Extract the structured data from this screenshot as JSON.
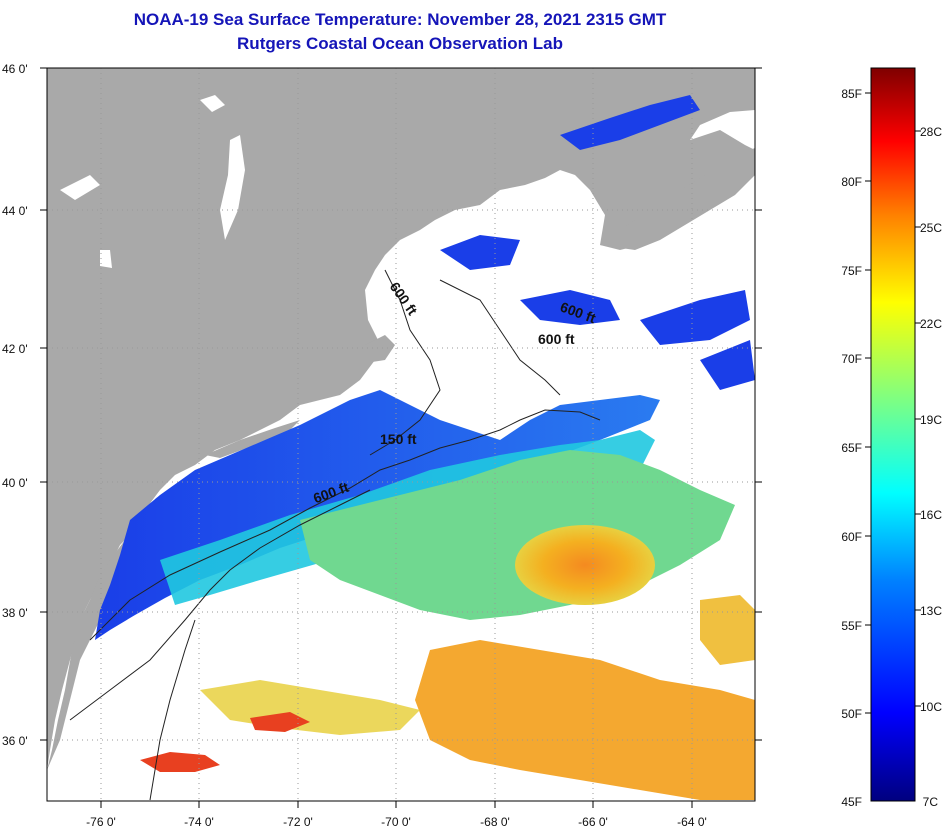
{
  "header": {
    "title": "NOAA-19 Sea Surface Temperature:  November 28, 2021 2315 GMT",
    "subtitle": "Rutgers Coastal Ocean Observation Lab"
  },
  "map": {
    "lat_labels": [
      "46 0'",
      "44 0'",
      "42 0'",
      "40 0'",
      "38 0'",
      "36 0'"
    ],
    "lon_labels": [
      "-76 0'",
      "-74 0'",
      "-72 0'",
      "-70 0'",
      "-68 0'",
      "-66 0'",
      "-64 0'"
    ],
    "contour_labels": [
      "600 ft",
      "600 ft",
      "600 ft",
      "150 ft",
      "600 ft"
    ],
    "colors": {
      "land": "#a9a9a9",
      "cloud": "#ffffff",
      "cold_water": "#1a3ee8",
      "warm_water": "#f4a020"
    }
  },
  "colorbar": {
    "f_labels": [
      "85F",
      "80F",
      "75F",
      "70F",
      "65F",
      "60F",
      "55F",
      "50F",
      "45F"
    ],
    "c_labels": [
      "28C",
      "25C",
      "22C",
      "19C",
      "16C",
      "13C",
      "10C",
      "7C"
    ],
    "colors": [
      "#00007f",
      "#0000ff",
      "#0080ff",
      "#00ffff",
      "#80ff80",
      "#ffff00",
      "#ff8000",
      "#ff0000",
      "#7f0000"
    ]
  }
}
